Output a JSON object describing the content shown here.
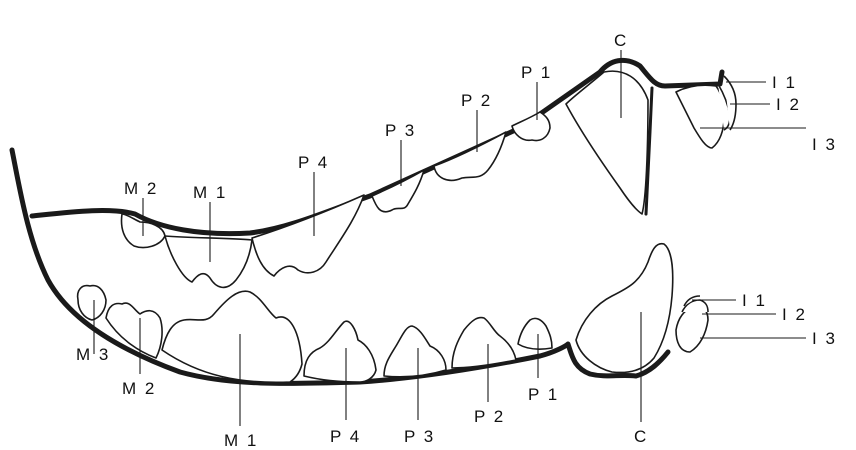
{
  "diagram": {
    "upper_jaw": {
      "labels": {
        "I1": "I 1",
        "I2": "I 2",
        "I3": "I 3",
        "C": "C",
        "P1": "P 1",
        "P2": "P 2",
        "P3": "P 3",
        "P4": "P 4",
        "M1": "M 1",
        "M2": "M 2"
      }
    },
    "lower_jaw": {
      "labels": {
        "I1": "I 1",
        "I2": "I 2",
        "I3": "I 3",
        "C": "C",
        "P1": "P 1",
        "P2": "P 2",
        "P3": "P 3",
        "P4": "P 4",
        "M1": "M 1",
        "M2": "M 2",
        "M3": "M 3"
      }
    },
    "colors": {
      "ink": "#1a1a1a",
      "background": "#ffffff"
    }
  }
}
